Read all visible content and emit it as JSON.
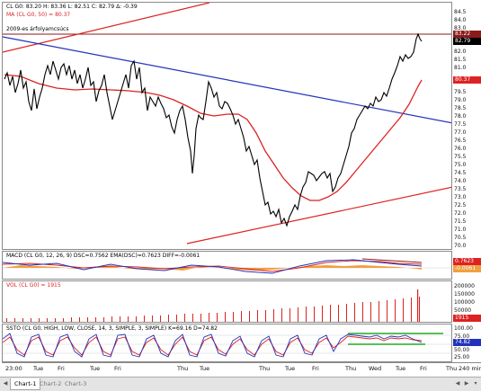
{
  "header": {
    "symbol_info": "CL G0: 83.20",
    "high": "H: 83.36",
    "low": "L: 82.51",
    "close": "C: 82.79",
    "change": "Δ: -0.39"
  },
  "main_panel": {
    "ma_label": "MA (CL G0, 50) = 80.37",
    "annotation": "2009-es árfolyamcsúcs",
    "price_ticks": [
      "84.5",
      "84.0",
      "83.0",
      "82.0",
      "81.5",
      "81.0",
      "80.5",
      "79.5",
      "79.0",
      "78.5",
      "78.0",
      "77.5",
      "77.0",
      "76.5",
      "76.0",
      "75.5",
      "75.0",
      "74.5",
      "74.0",
      "73.5",
      "73.0",
      "72.5",
      "72.0",
      "71.5",
      "71.0",
      "70.5",
      "70.0"
    ],
    "tag_price": "83.22",
    "tag_close": "82.79",
    "tag_ma": "80.37",
    "colors": {
      "price": "#000000",
      "ma": "#dd2222",
      "blue_trend": "#2233bb",
      "red_channel": "#dd2222",
      "resistance": "#8b1a1a"
    }
  },
  "macd_panel": {
    "label": "MACD (CL G0, 12, 26, 9)  DSC=0.7562  EMA(DSC)=0.7623  DIFF=-0.0061",
    "tag_signal": "0.7623",
    "tag_diff": "-0.0061"
  },
  "vol_panel": {
    "label": "VOL (CL G0) = 1915",
    "ticks": [
      "200000",
      "150000",
      "100000",
      "50000"
    ],
    "tag_vol": "1915"
  },
  "ssto_panel": {
    "label": "SSTO (CL G0, HIGH, LOW, CLOSE, 14, 3, SIMPLE, 3, SIMPLE)  K=69.16  D=74.82",
    "ticks": [
      "100.00",
      "75.00",
      "50.00",
      "25.00"
    ],
    "tag_d": "74.82"
  },
  "time_axis": {
    "labels": [
      "23:00",
      "Tue",
      "Fri",
      "Tue",
      "Fri",
      "Thu",
      "Tue",
      "Thu",
      "Tue",
      "Fri",
      "Thu",
      "Wed",
      "Tue",
      "Fri",
      "Thu"
    ],
    "timeframe": "240 min."
  },
  "tabs": [
    "Chart-1",
    "Chart-2",
    "Chart-3"
  ]
}
